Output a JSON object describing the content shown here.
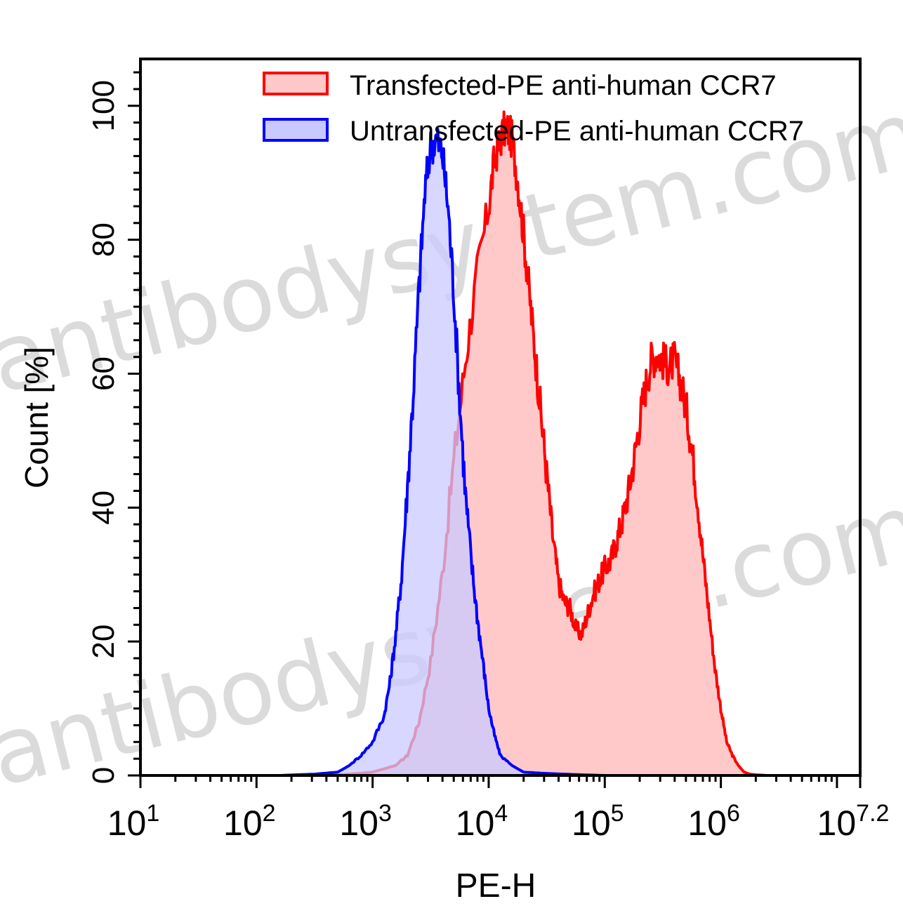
{
  "watermark": "antibodysystem.com",
  "colors": {
    "transfected_line": "#ff0000",
    "transfected_fill": "#ffc9c9",
    "untransfected_line": "#0000ff",
    "untransfected_fill": "#c9c9ff",
    "axis": "#000000"
  },
  "chart_data": {
    "type": "area",
    "title": "",
    "xlabel": "PE-H",
    "ylabel": "Count [%]",
    "xscale": "log10",
    "xlim_exp": [
      1,
      7.2
    ],
    "ylim": [
      0,
      107
    ],
    "grid": false,
    "legend_position": "top-right",
    "x_ticks": [
      {
        "base": "10",
        "exp": "1",
        "value": 1
      },
      {
        "base": "10",
        "exp": "2",
        "value": 2
      },
      {
        "base": "10",
        "exp": "3",
        "value": 3
      },
      {
        "base": "10",
        "exp": "4",
        "value": 4
      },
      {
        "base": "10",
        "exp": "5",
        "value": 5
      },
      {
        "base": "10",
        "exp": "6",
        "value": 6
      },
      {
        "base": "10",
        "exp": "7.2",
        "value": 7.2
      }
    ],
    "y_ticks": [
      "0",
      "20",
      "40",
      "60",
      "80",
      "100"
    ],
    "series": [
      {
        "name": "Transfected-PE anti-human CCR7",
        "color": "#ff0000",
        "fill": "#ffc9c9",
        "x_log10": [
          2.6,
          2.8,
          3.0,
          3.2,
          3.3,
          3.4,
          3.5,
          3.6,
          3.7,
          3.8,
          3.9,
          4.0,
          4.05,
          4.1,
          4.15,
          4.2,
          4.25,
          4.3,
          4.35,
          4.4,
          4.45,
          4.5,
          4.55,
          4.6,
          4.65,
          4.7,
          4.75,
          4.8,
          4.85,
          4.9,
          4.95,
          5.0,
          5.05,
          5.1,
          5.15,
          5.2,
          5.25,
          5.3,
          5.35,
          5.4,
          5.45,
          5.5,
          5.55,
          5.6,
          5.65,
          5.7,
          5.75,
          5.8,
          5.85,
          5.9,
          5.95,
          6.0,
          6.05,
          6.1,
          6.15,
          6.2,
          6.25,
          6.3,
          6.4
        ],
        "y": [
          0,
          0.2,
          0.5,
          1.5,
          3,
          8,
          17,
          30,
          47,
          62,
          75,
          85,
          92,
          95,
          97,
          95,
          89,
          81,
          72,
          63,
          54,
          45,
          36,
          29,
          26,
          25,
          22,
          21,
          24,
          27,
          29,
          31,
          32,
          35,
          38,
          42,
          47,
          53,
          58,
          62,
          63,
          62,
          61,
          62,
          59,
          55,
          49,
          41,
          32,
          24,
          16,
          10,
          5,
          3,
          1.5,
          0.5,
          0.2,
          0.1,
          0
        ]
      },
      {
        "name": "Untransfected-PE anti-human CCR7",
        "color": "#0000ff",
        "fill": "#c9c9ff",
        "x_log10": [
          2.2,
          2.5,
          2.7,
          2.8,
          2.9,
          3.0,
          3.1,
          3.15,
          3.2,
          3.25,
          3.3,
          3.35,
          3.4,
          3.45,
          3.5,
          3.55,
          3.6,
          3.65,
          3.7,
          3.75,
          3.8,
          3.85,
          3.9,
          3.95,
          4.0,
          4.05,
          4.1,
          4.2,
          4.3,
          4.5,
          4.8,
          5.0
        ],
        "y": [
          0,
          0.2,
          0.5,
          1.5,
          3,
          5,
          9,
          14,
          21,
          30,
          43,
          57,
          73,
          87,
          94,
          95,
          93,
          85,
          72,
          56,
          42,
          32,
          24,
          17,
          10,
          6,
          3,
          1.5,
          0.5,
          0.3,
          0.1,
          0
        ]
      }
    ]
  }
}
